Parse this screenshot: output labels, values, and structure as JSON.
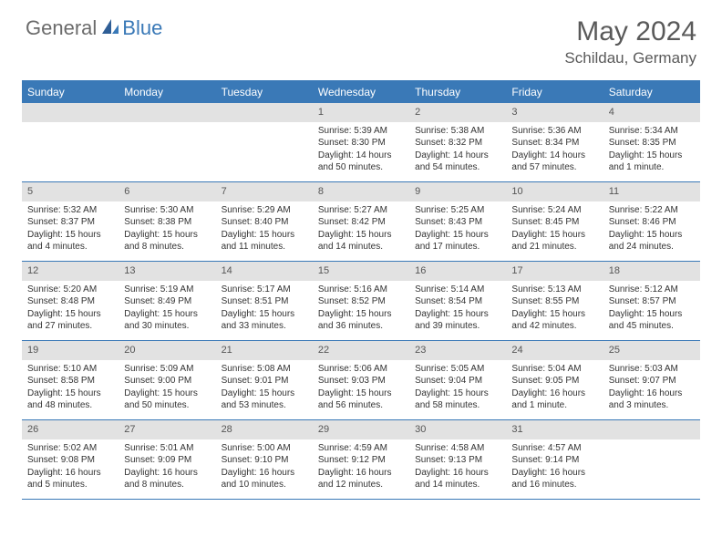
{
  "brand": {
    "part1": "General",
    "part2": "Blue"
  },
  "title": "May 2024",
  "location": "Schildau, Germany",
  "colors": {
    "accent": "#3a79b7",
    "header_text": "#5a5a5a",
    "daynum_bg": "#e2e2e2",
    "text": "#333333",
    "bg": "#ffffff"
  },
  "dow": [
    "Sunday",
    "Monday",
    "Tuesday",
    "Wednesday",
    "Thursday",
    "Friday",
    "Saturday"
  ],
  "weeks": [
    [
      null,
      null,
      null,
      {
        "n": "1",
        "sr": "5:39 AM",
        "ss": "8:30 PM",
        "dl": "14 hours and 50 minutes."
      },
      {
        "n": "2",
        "sr": "5:38 AM",
        "ss": "8:32 PM",
        "dl": "14 hours and 54 minutes."
      },
      {
        "n": "3",
        "sr": "5:36 AM",
        "ss": "8:34 PM",
        "dl": "14 hours and 57 minutes."
      },
      {
        "n": "4",
        "sr": "5:34 AM",
        "ss": "8:35 PM",
        "dl": "15 hours and 1 minute."
      }
    ],
    [
      {
        "n": "5",
        "sr": "5:32 AM",
        "ss": "8:37 PM",
        "dl": "15 hours and 4 minutes."
      },
      {
        "n": "6",
        "sr": "5:30 AM",
        "ss": "8:38 PM",
        "dl": "15 hours and 8 minutes."
      },
      {
        "n": "7",
        "sr": "5:29 AM",
        "ss": "8:40 PM",
        "dl": "15 hours and 11 minutes."
      },
      {
        "n": "8",
        "sr": "5:27 AM",
        "ss": "8:42 PM",
        "dl": "15 hours and 14 minutes."
      },
      {
        "n": "9",
        "sr": "5:25 AM",
        "ss": "8:43 PM",
        "dl": "15 hours and 17 minutes."
      },
      {
        "n": "10",
        "sr": "5:24 AM",
        "ss": "8:45 PM",
        "dl": "15 hours and 21 minutes."
      },
      {
        "n": "11",
        "sr": "5:22 AM",
        "ss": "8:46 PM",
        "dl": "15 hours and 24 minutes."
      }
    ],
    [
      {
        "n": "12",
        "sr": "5:20 AM",
        "ss": "8:48 PM",
        "dl": "15 hours and 27 minutes."
      },
      {
        "n": "13",
        "sr": "5:19 AM",
        "ss": "8:49 PM",
        "dl": "15 hours and 30 minutes."
      },
      {
        "n": "14",
        "sr": "5:17 AM",
        "ss": "8:51 PM",
        "dl": "15 hours and 33 minutes."
      },
      {
        "n": "15",
        "sr": "5:16 AM",
        "ss": "8:52 PM",
        "dl": "15 hours and 36 minutes."
      },
      {
        "n": "16",
        "sr": "5:14 AM",
        "ss": "8:54 PM",
        "dl": "15 hours and 39 minutes."
      },
      {
        "n": "17",
        "sr": "5:13 AM",
        "ss": "8:55 PM",
        "dl": "15 hours and 42 minutes."
      },
      {
        "n": "18",
        "sr": "5:12 AM",
        "ss": "8:57 PM",
        "dl": "15 hours and 45 minutes."
      }
    ],
    [
      {
        "n": "19",
        "sr": "5:10 AM",
        "ss": "8:58 PM",
        "dl": "15 hours and 48 minutes."
      },
      {
        "n": "20",
        "sr": "5:09 AM",
        "ss": "9:00 PM",
        "dl": "15 hours and 50 minutes."
      },
      {
        "n": "21",
        "sr": "5:08 AM",
        "ss": "9:01 PM",
        "dl": "15 hours and 53 minutes."
      },
      {
        "n": "22",
        "sr": "5:06 AM",
        "ss": "9:03 PM",
        "dl": "15 hours and 56 minutes."
      },
      {
        "n": "23",
        "sr": "5:05 AM",
        "ss": "9:04 PM",
        "dl": "15 hours and 58 minutes."
      },
      {
        "n": "24",
        "sr": "5:04 AM",
        "ss": "9:05 PM",
        "dl": "16 hours and 1 minute."
      },
      {
        "n": "25",
        "sr": "5:03 AM",
        "ss": "9:07 PM",
        "dl": "16 hours and 3 minutes."
      }
    ],
    [
      {
        "n": "26",
        "sr": "5:02 AM",
        "ss": "9:08 PM",
        "dl": "16 hours and 5 minutes."
      },
      {
        "n": "27",
        "sr": "5:01 AM",
        "ss": "9:09 PM",
        "dl": "16 hours and 8 minutes."
      },
      {
        "n": "28",
        "sr": "5:00 AM",
        "ss": "9:10 PM",
        "dl": "16 hours and 10 minutes."
      },
      {
        "n": "29",
        "sr": "4:59 AM",
        "ss": "9:12 PM",
        "dl": "16 hours and 12 minutes."
      },
      {
        "n": "30",
        "sr": "4:58 AM",
        "ss": "9:13 PM",
        "dl": "16 hours and 14 minutes."
      },
      {
        "n": "31",
        "sr": "4:57 AM",
        "ss": "9:14 PM",
        "dl": "16 hours and 16 minutes."
      },
      null
    ]
  ],
  "labels": {
    "sunrise": "Sunrise:",
    "sunset": "Sunset:",
    "daylight": "Daylight:"
  }
}
